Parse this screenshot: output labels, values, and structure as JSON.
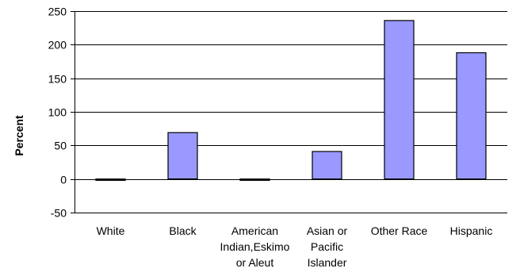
{
  "chart_data": {
    "type": "bar",
    "categories": [
      [
        "White"
      ],
      [
        "Black"
      ],
      [
        "American",
        "Indian,Eskimo",
        "or Aleut"
      ],
      [
        "Asian or",
        "Pacific",
        "Islander"
      ],
      [
        "Other Race"
      ],
      [
        "Hispanic"
      ]
    ],
    "values": [
      -2,
      69,
      -2,
      41,
      236,
      188
    ],
    "ylabel": "Percent",
    "xlabel": "",
    "title": "",
    "ylim": [
      -50,
      250
    ],
    "yticks": [
      250,
      200,
      150,
      100,
      50,
      0,
      -50
    ],
    "grid": true,
    "legend": "none",
    "colors": {
      "bar_fill": "#9999ff",
      "bar_stroke": "#000000",
      "grid": "#000000",
      "axis": "#000000"
    }
  }
}
